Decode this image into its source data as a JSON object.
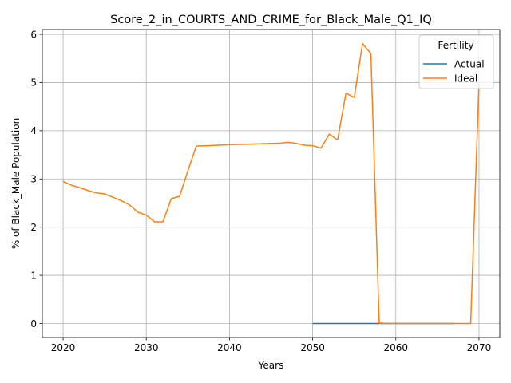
{
  "chart_data": {
    "type": "line",
    "title": "Score_2_in_COURTS_AND_CRIME_for_Black_Male_Q1_IQ",
    "xlabel": "Years",
    "ylabel": "% of Black_Male Population",
    "xlim": [
      2017.5,
      2072.5
    ],
    "ylim": [
      -0.29,
      6.1
    ],
    "xticks": [
      2020,
      2030,
      2040,
      2050,
      2060,
      2070
    ],
    "yticks": [
      0,
      1,
      2,
      3,
      4,
      5,
      6
    ],
    "grid": true,
    "legend": {
      "title": "Fertility",
      "placement": "top-right"
    },
    "series": [
      {
        "name": "Actual",
        "color": "#1f77b4",
        "x": [
          2050,
          2051,
          2052,
          2053,
          2054,
          2055,
          2056,
          2057,
          2058,
          2059,
          2060,
          2061,
          2062,
          2063,
          2064,
          2065,
          2066,
          2067
        ],
        "y": [
          0,
          0,
          0,
          0,
          0,
          0,
          0,
          0,
          0,
          0,
          0,
          0,
          0,
          0,
          0,
          0,
          0,
          0
        ]
      },
      {
        "name": "Ideal",
        "color": "#ff7f0e",
        "x": [
          2020,
          2021,
          2022,
          2023,
          2024,
          2025,
          2026,
          2027,
          2028,
          2029,
          2030,
          2031,
          2032,
          2033,
          2034,
          2035,
          2036,
          2040,
          2046,
          2047,
          2048,
          2049,
          2050,
          2051,
          2052,
          2053,
          2054,
          2055,
          2056,
          2057,
          2058,
          2059,
          2060,
          2061,
          2062,
          2063,
          2064,
          2065,
          2066,
          2067,
          2068,
          2069,
          2070
        ],
        "y": [
          2.95,
          2.87,
          2.82,
          2.76,
          2.71,
          2.69,
          2.62,
          2.55,
          2.46,
          2.31,
          2.25,
          2.11,
          2.11,
          2.59,
          2.64,
          3.17,
          3.68,
          3.71,
          3.74,
          3.76,
          3.74,
          3.7,
          3.69,
          3.64,
          3.93,
          3.81,
          4.78,
          4.69,
          5.81,
          5.6,
          0.01,
          0.0,
          0.0,
          0.0,
          0.0,
          0.0,
          0.0,
          0.0,
          0.0,
          0.0,
          0.0,
          0.0,
          5.0
        ]
      }
    ]
  }
}
